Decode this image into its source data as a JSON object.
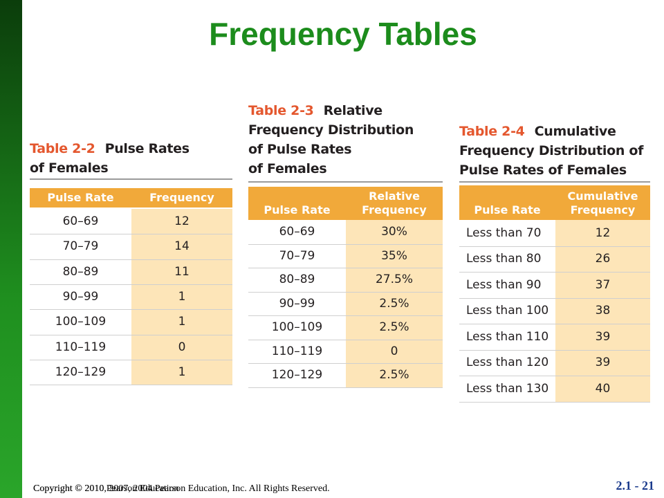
{
  "title": "Frequency Tables",
  "tables": [
    {
      "label": "Table 2-2",
      "caption_lines": [
        "Pulse Rates",
        "of Females"
      ],
      "columns": [
        "Pulse Rate",
        "Frequency"
      ],
      "rows": [
        [
          "60–69",
          "12"
        ],
        [
          "70–79",
          "14"
        ],
        [
          "80–89",
          "11"
        ],
        [
          "90–99",
          "1"
        ],
        [
          "100–109",
          "1"
        ],
        [
          "110–119",
          "0"
        ],
        [
          "120–129",
          "1"
        ]
      ]
    },
    {
      "label": "Table 2-3",
      "caption_lines": [
        "Relative",
        "Frequency Distribution",
        "of Pulse Rates",
        "of Females"
      ],
      "columns": [
        "Pulse Rate",
        "Relative Frequency"
      ],
      "rows": [
        [
          "60–69",
          "30%"
        ],
        [
          "70–79",
          "35%"
        ],
        [
          "80–89",
          "27.5%"
        ],
        [
          "90–99",
          "2.5%"
        ],
        [
          "100–109",
          "2.5%"
        ],
        [
          "110–119",
          "0"
        ],
        [
          "120–129",
          "2.5%"
        ]
      ]
    },
    {
      "label": "Table 2-4",
      "caption_lines": [
        "Cumulative",
        "Frequency Distribution of",
        "Pulse Rates of Females"
      ],
      "columns": [
        "Pulse Rate",
        "Cumulative Frequency"
      ],
      "rows": [
        [
          "Less than 70",
          "12"
        ],
        [
          "Less than 80",
          "26"
        ],
        [
          "Less than 90",
          "37"
        ],
        [
          "Less than 100",
          "38"
        ],
        [
          "Less than 110",
          "39"
        ],
        [
          "Less than 120",
          "39"
        ],
        [
          "Less than 130",
          "40"
        ]
      ]
    }
  ],
  "footer": {
    "copyright": "Copyright © 2010, 2007, 2004 Pearson Education, Inc. All Rights Reserved.",
    "copyright_overlay": "Copyright © 2010 Pearson Education",
    "slide_number": "2.1 - 21"
  }
}
